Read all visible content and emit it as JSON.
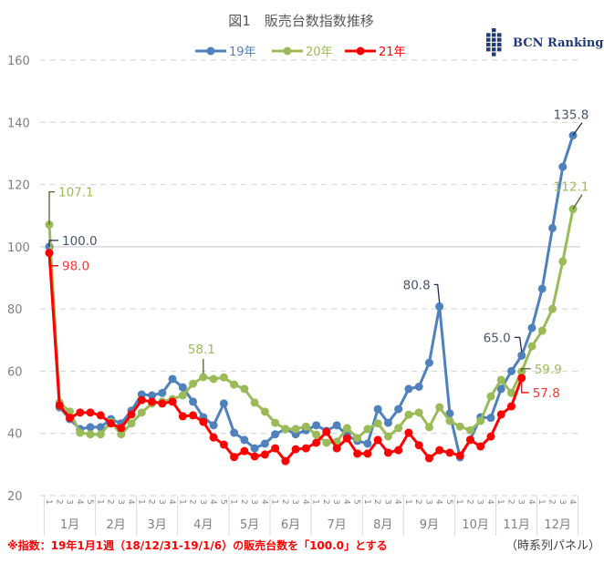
{
  "chart_data": {
    "type": "line",
    "title": "図1　販売台数指数推移",
    "logo_text": "BCN Ranking",
    "ylim": [
      20,
      160
    ],
    "yticks": [
      20,
      40,
      60,
      80,
      100,
      120,
      140,
      160
    ],
    "grid": true,
    "legend_position": "top",
    "months": [
      {
        "label": "1月",
        "weeks": [
          "1",
          "2",
          "3",
          "4",
          "5"
        ]
      },
      {
        "label": "2月",
        "weeks": [
          "1",
          "2",
          "3",
          "4"
        ]
      },
      {
        "label": "3月",
        "weeks": [
          "1",
          "2",
          "3",
          "4"
        ]
      },
      {
        "label": "4月",
        "weeks": [
          "1",
          "2",
          "3",
          "4",
          "5"
        ]
      },
      {
        "label": "5月",
        "weeks": [
          "1",
          "2",
          "3",
          "4"
        ]
      },
      {
        "label": "6月",
        "weeks": [
          "1",
          "2",
          "3",
          "4"
        ]
      },
      {
        "label": "7月",
        "weeks": [
          "1",
          "2",
          "3",
          "4",
          "5"
        ]
      },
      {
        "label": "8月",
        "weeks": [
          "1",
          "2",
          "3",
          "4"
        ]
      },
      {
        "label": "9月",
        "weeks": [
          "1",
          "2",
          "3",
          "4",
          "5"
        ]
      },
      {
        "label": "10月",
        "weeks": [
          "1",
          "2",
          "3",
          "4"
        ]
      },
      {
        "label": "11月",
        "weeks": [
          "1",
          "2",
          "3",
          "4"
        ]
      },
      {
        "label": "12月",
        "weeks": [
          "1",
          "2",
          "3",
          "4"
        ]
      }
    ],
    "series": [
      {
        "name": "19年",
        "color": "#4f81bd",
        "values": [
          100.0,
          48.4,
          44.6,
          41.4,
          42,
          42,
          44.6,
          43.2,
          47.3,
          52.5,
          52.2,
          53,
          57.5,
          54.8,
          50.2,
          45.2,
          42.6,
          49.6,
          40.2,
          37.9,
          35.2,
          36.7,
          39.7,
          41.4,
          39.7,
          41,
          42.6,
          40.8,
          42.6,
          39.4,
          37.6,
          36.7,
          47.8,
          43.4,
          47.8,
          54.3,
          55,
          62.7,
          80.8,
          46.4,
          32.3,
          38,
          45.2,
          45,
          54.3,
          60,
          65.0,
          73.9,
          86.5,
          106,
          125.7,
          135.8
        ]
      },
      {
        "name": "20年",
        "color": "#9bbb59",
        "values": [
          107.1,
          49.9,
          47,
          40.2,
          39.7,
          39.7,
          43.7,
          39.7,
          43.2,
          46.7,
          49.6,
          50.2,
          51,
          52.2,
          56,
          58.1,
          57.5,
          58,
          55.7,
          54.3,
          49.9,
          47,
          43.4,
          41.4,
          41.4,
          42.2,
          39.6,
          37,
          37.3,
          41.7,
          38.5,
          41.4,
          43.2,
          39,
          41.7,
          46,
          46.7,
          42,
          48.4,
          44,
          42.2,
          41,
          44,
          51.9,
          57.2,
          53,
          59.9,
          68,
          73,
          80,
          95.3,
          112.1
        ]
      },
      {
        "name": "21年",
        "color": "#ff0000",
        "values": [
          98.0,
          49,
          45,
          46.7,
          46.7,
          45.8,
          43.2,
          41.7,
          46.1,
          50.7,
          50.2,
          49.6,
          50.2,
          45.5,
          45.8,
          43.7,
          38.7,
          36.4,
          32.4,
          34.3,
          32.6,
          33.2,
          35.2,
          31.1,
          34.9,
          35.2,
          37,
          40.5,
          35.2,
          38.4,
          33.5,
          33.5,
          37.9,
          33.8,
          34.6,
          40.2,
          36.2,
          32,
          34.6,
          33.8,
          32.9,
          37.9,
          35.8,
          39,
          46.1,
          48.7,
          57.8
        ]
      }
    ],
    "annotations": [
      {
        "series": 1,
        "index": 0,
        "text": "107.1"
      },
      {
        "series": 0,
        "index": 0,
        "text": "100.0"
      },
      {
        "series": 2,
        "index": 0,
        "text": "98.0"
      },
      {
        "series": 1,
        "index": 15,
        "text": "58.1"
      },
      {
        "series": 0,
        "index": 38,
        "text": "80.8"
      },
      {
        "series": 0,
        "index": 46,
        "text": "65.0"
      },
      {
        "series": 1,
        "index": 46,
        "text": "59.9"
      },
      {
        "series": 2,
        "index": 46,
        "text": "57.8"
      },
      {
        "series": 0,
        "index": 51,
        "text": "135.8"
      },
      {
        "series": 1,
        "index": 51,
        "text": "112.1"
      }
    ]
  },
  "footnote": "※指数：19年1月1週（18/12/31-19/1/6）の販売台数を「100.0」とする",
  "panel_note": "（時系列パネル）"
}
